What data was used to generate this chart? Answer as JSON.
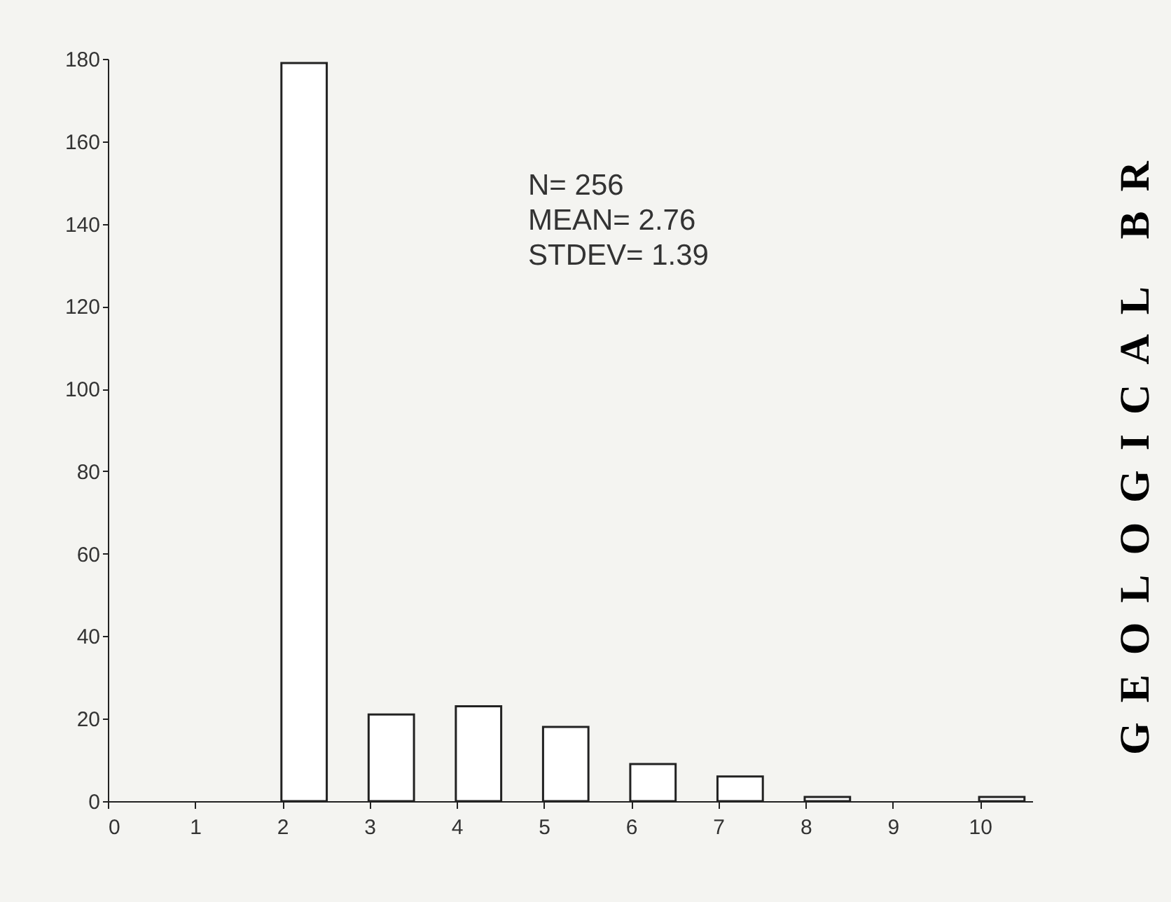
{
  "chart_data": {
    "type": "bar",
    "x": [
      2.25,
      3.25,
      4.25,
      5.25,
      6.25,
      7.25,
      8.25,
      10.25
    ],
    "values": [
      179,
      21,
      23,
      18,
      9,
      6,
      1,
      1
    ],
    "color": "#ffffff",
    "xlim": [
      0,
      10.6
    ],
    "xticks": [
      0,
      1,
      2,
      3,
      4,
      5,
      6,
      7,
      8,
      9,
      10
    ],
    "ylim": [
      0,
      180
    ],
    "yticks": [
      0,
      20,
      40,
      60,
      80,
      100,
      120,
      140,
      160,
      180
    ],
    "grid": false,
    "annotations": [
      "N= 256",
      "MEAN= 2.76",
      "STDEV= 1.39",
      "GEOLOGICAL BR"
    ]
  }
}
